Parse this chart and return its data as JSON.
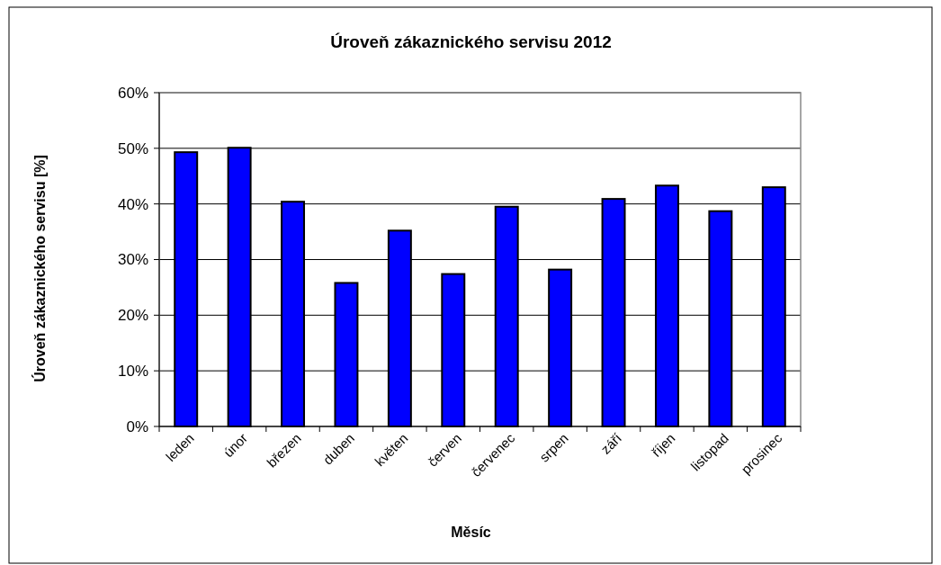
{
  "chart_data": {
    "type": "bar",
    "title": "Úroveň zákaznického servisu 2012",
    "xlabel": "Měsíc",
    "ylabel": "Úroveň zákaznického servisu [%]",
    "categories": [
      "leden",
      "únor",
      "březen",
      "duben",
      "květen",
      "červen",
      "červenec",
      "srpen",
      "září",
      "říjen",
      "listopad",
      "prosinec"
    ],
    "values": [
      49.3,
      50.1,
      40.4,
      25.8,
      35.2,
      27.4,
      39.5,
      28.2,
      40.9,
      43.3,
      38.7,
      43.0
    ],
    "color": "#0000ff",
    "ylim": [
      0,
      60
    ],
    "yticks": [
      {
        "value": 0,
        "label": "0%"
      },
      {
        "value": 10,
        "label": "10%"
      },
      {
        "value": 20,
        "label": "20%"
      },
      {
        "value": 30,
        "label": "30%"
      },
      {
        "value": 40,
        "label": "40%"
      },
      {
        "value": 50,
        "label": "50%"
      },
      {
        "value": 60,
        "label": "60%"
      }
    ],
    "grid": "y"
  }
}
